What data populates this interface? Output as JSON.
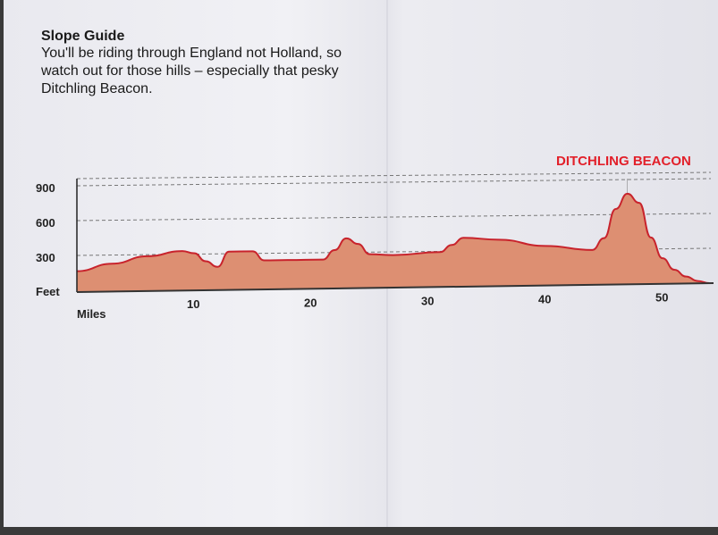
{
  "heading": "Slope Guide",
  "description": "You'll be riding through England not Holland, so watch out for those hills – especially that pesky Ditchling Beacon.",
  "chart_data": {
    "type": "area",
    "title": "Slope Guide",
    "xlabel": "Miles",
    "ylabel": "Feet",
    "xlim": [
      0,
      54
    ],
    "ylim": [
      0,
      1000
    ],
    "xticks": [
      10,
      20,
      30,
      40,
      50
    ],
    "yticks": [
      300,
      600,
      900
    ],
    "grid": true,
    "annotation": {
      "text": "DITCHLING BEACON",
      "x": 47
    },
    "x": [
      0,
      3,
      6,
      9,
      10,
      11,
      12,
      13,
      15,
      16,
      18,
      21,
      22,
      23,
      24,
      25,
      27,
      31,
      32,
      33,
      36,
      40,
      44,
      45,
      46,
      47,
      48,
      49,
      50,
      51,
      52,
      53,
      54
    ],
    "y": [
      180,
      240,
      300,
      340,
      320,
      250,
      200,
      330,
      330,
      250,
      250,
      250,
      330,
      430,
      380,
      290,
      280,
      300,
      360,
      420,
      400,
      340,
      300,
      400,
      650,
      780,
      700,
      400,
      220,
      120,
      60,
      20,
      0
    ],
    "fill_color": "#dd8f72",
    "line_color": "#c8232c"
  }
}
